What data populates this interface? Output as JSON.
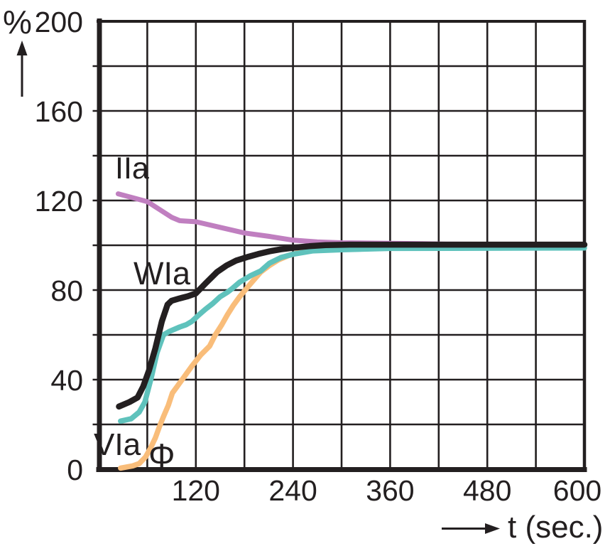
{
  "app": {
    "background": "#ffffff",
    "ink_color": "#231f20"
  },
  "axes": {
    "y_unit_label": "%",
    "x_axis_label": "t (sec.)",
    "y_tick_labels": [
      "200",
      "160",
      "120",
      "80",
      "40",
      "0"
    ],
    "x_tick_labels": [
      "120",
      "240",
      "360",
      "480",
      "600"
    ]
  },
  "icons": {
    "y_axis_arrow": "up-arrow",
    "x_axis_arrow": "right-arrow"
  },
  "chart_data": {
    "type": "line",
    "title": "",
    "xlabel": "t (sec.)",
    "ylabel": "%",
    "xlim": [
      0,
      600
    ],
    "ylim": [
      0,
      200
    ],
    "x_grid_step": 60,
    "y_grid_step": 20,
    "grid": "on",
    "x_ticks_labeled": [
      120,
      240,
      360,
      480,
      600
    ],
    "y_ticks_labeled": [
      0,
      40,
      80,
      120,
      160,
      200
    ],
    "legend_position": "inline-curve-labels",
    "series": [
      {
        "name": "IIa",
        "label": "IIa",
        "color": "#c07fc0",
        "description": "starts ~123%, decays toward 100%",
        "points": [
          [
            24,
            123
          ],
          [
            60,
            119.5
          ],
          [
            90,
            112.5
          ],
          [
            100,
            111
          ],
          [
            120,
            110.5
          ],
          [
            150,
            108
          ],
          [
            180,
            105.5
          ],
          [
            210,
            104
          ],
          [
            240,
            102.3
          ],
          [
            270,
            101.5
          ],
          [
            300,
            101.1
          ],
          [
            360,
            100.9
          ],
          [
            400,
            100.7
          ],
          [
            430,
            100.5
          ],
          [
            600,
            100.35
          ]
        ]
      },
      {
        "name": "Phi",
        "label": "Φ",
        "color": "#f9bd7a",
        "description": "starts ~0%, rises to 100%",
        "points": [
          [
            27,
            0.5
          ],
          [
            42,
            1.5
          ],
          [
            50,
            2.5
          ],
          [
            58,
            5.5
          ],
          [
            64,
            9.5
          ],
          [
            70,
            14
          ],
          [
            75,
            19
          ],
          [
            80,
            23.5
          ],
          [
            86,
            28.5
          ],
          [
            91,
            34
          ],
          [
            97,
            37
          ],
          [
            105,
            41
          ],
          [
            115,
            46
          ],
          [
            126,
            51
          ],
          [
            137,
            55
          ],
          [
            144,
            60
          ],
          [
            152,
            64.5
          ],
          [
            159,
            69
          ],
          [
            166,
            73
          ],
          [
            174,
            77
          ],
          [
            181,
            80
          ],
          [
            188,
            83
          ],
          [
            200,
            88
          ],
          [
            211,
            91
          ],
          [
            222,
            93.5
          ],
          [
            235,
            95.5
          ],
          [
            255,
            97.5
          ],
          [
            280,
            99.2
          ],
          [
            300,
            100
          ],
          [
            600,
            100.2
          ]
        ]
      },
      {
        "name": "VIa",
        "label": "VIa",
        "color": "#5fc2bc",
        "description": "starts ~21%, rises to ~99%",
        "points": [
          [
            27,
            21.5
          ],
          [
            40,
            22.5
          ],
          [
            50,
            25.5
          ],
          [
            57,
            30
          ],
          [
            65,
            41
          ],
          [
            72,
            52
          ],
          [
            80,
            60
          ],
          [
            87,
            61.5
          ],
          [
            100,
            63.5
          ],
          [
            108,
            64.5
          ],
          [
            115,
            66
          ],
          [
            124,
            69
          ],
          [
            132,
            71.5
          ],
          [
            141,
            74
          ],
          [
            150,
            77
          ],
          [
            159,
            79
          ],
          [
            166,
            81
          ],
          [
            174,
            83.5
          ],
          [
            181,
            85
          ],
          [
            188,
            86.5
          ],
          [
            200,
            88.5
          ],
          [
            211,
            92
          ],
          [
            225,
            94.5
          ],
          [
            240,
            96
          ],
          [
            264,
            97.5
          ],
          [
            300,
            98
          ],
          [
            360,
            98.6
          ],
          [
            600,
            98.8
          ]
        ]
      },
      {
        "name": "WIa",
        "label": "WIa",
        "color": "#231f20",
        "description": "starts ~28%, rises to 100%",
        "points": [
          [
            25,
            28
          ],
          [
            38,
            30
          ],
          [
            48,
            32
          ],
          [
            55,
            37
          ],
          [
            62,
            44
          ],
          [
            70,
            54
          ],
          [
            78,
            66
          ],
          [
            85,
            73.5
          ],
          [
            90,
            75.2
          ],
          [
            100,
            76.3
          ],
          [
            110,
            77.2
          ],
          [
            120,
            78.5
          ],
          [
            132,
            83
          ],
          [
            146,
            88
          ],
          [
            158,
            91
          ],
          [
            170,
            93.2
          ],
          [
            185,
            94.9
          ],
          [
            197,
            96.1
          ],
          [
            211,
            97.3
          ],
          [
            225,
            98.2
          ],
          [
            240,
            98.9
          ],
          [
            260,
            99.6
          ],
          [
            280,
            100.1
          ],
          [
            310,
            100.3
          ],
          [
            600,
            100.3
          ]
        ]
      }
    ]
  }
}
